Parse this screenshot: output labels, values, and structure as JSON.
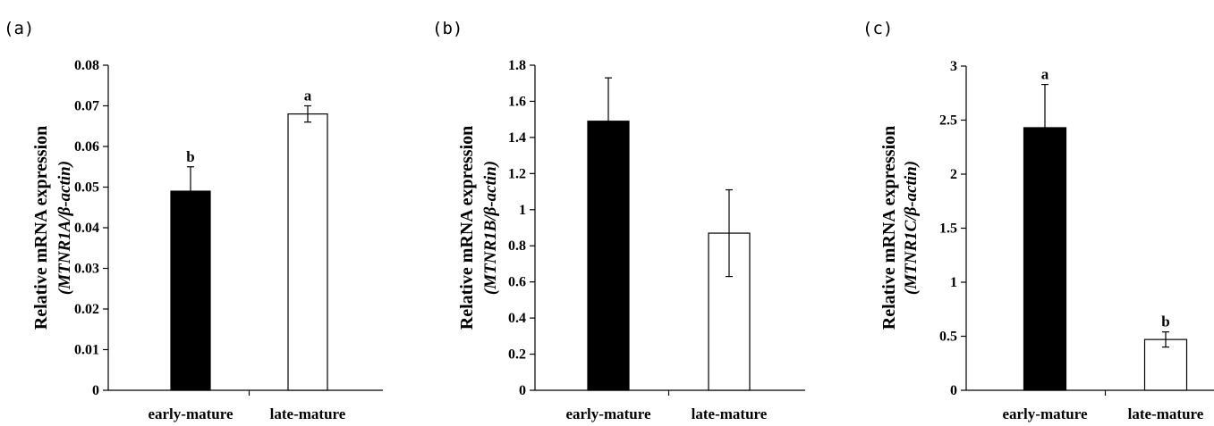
{
  "chart_data": [
    {
      "type": "bar",
      "panel": "(a)",
      "categories": [
        "early-mature",
        "late-mature"
      ],
      "values": [
        0.049,
        0.068
      ],
      "errors": [
        0.006,
        0.002
      ],
      "significance": [
        "b",
        "a"
      ],
      "bar_colors": [
        "#000000",
        "#ffffff"
      ],
      "ylabel": "Relative mRNA expression",
      "ylabel_gene": "(MTNR1A/β-actin)",
      "ylim": [
        0,
        0.08
      ],
      "yticks": [
        "0",
        "0.01",
        "0.02",
        "0.03",
        "0.04",
        "0.05",
        "0.06",
        "0.07",
        "0.08"
      ],
      "grid": false
    },
    {
      "type": "bar",
      "panel": "(b)",
      "categories": [
        "early-mature",
        "late-mature"
      ],
      "values": [
        1.49,
        0.87
      ],
      "errors": [
        0.24,
        0.24
      ],
      "significance": [
        "",
        ""
      ],
      "bar_colors": [
        "#000000",
        "#ffffff"
      ],
      "ylabel": "Relative mRNA expression",
      "ylabel_gene": "(MTNR1B/β-actin)",
      "ylim": [
        0,
        1.8
      ],
      "yticks": [
        "0",
        "0.2",
        "0.4",
        "0.6",
        "0.8",
        "1",
        "1.2",
        "1.4",
        "1.6",
        "1.8"
      ],
      "grid": false
    },
    {
      "type": "bar",
      "panel": "(c)",
      "categories": [
        "early-mature",
        "late-mature"
      ],
      "values": [
        2.43,
        0.47
      ],
      "errors": [
        0.4,
        0.07
      ],
      "significance": [
        "a",
        "b"
      ],
      "bar_colors": [
        "#000000",
        "#ffffff"
      ],
      "ylabel": "Relative mRNA expression",
      "ylabel_gene": "(MTNR1C/β-actin)",
      "ylim": [
        0,
        3
      ],
      "yticks": [
        "0",
        "0.5",
        "1",
        "1.5",
        "2",
        "2.5",
        "3"
      ],
      "grid": false
    }
  ]
}
